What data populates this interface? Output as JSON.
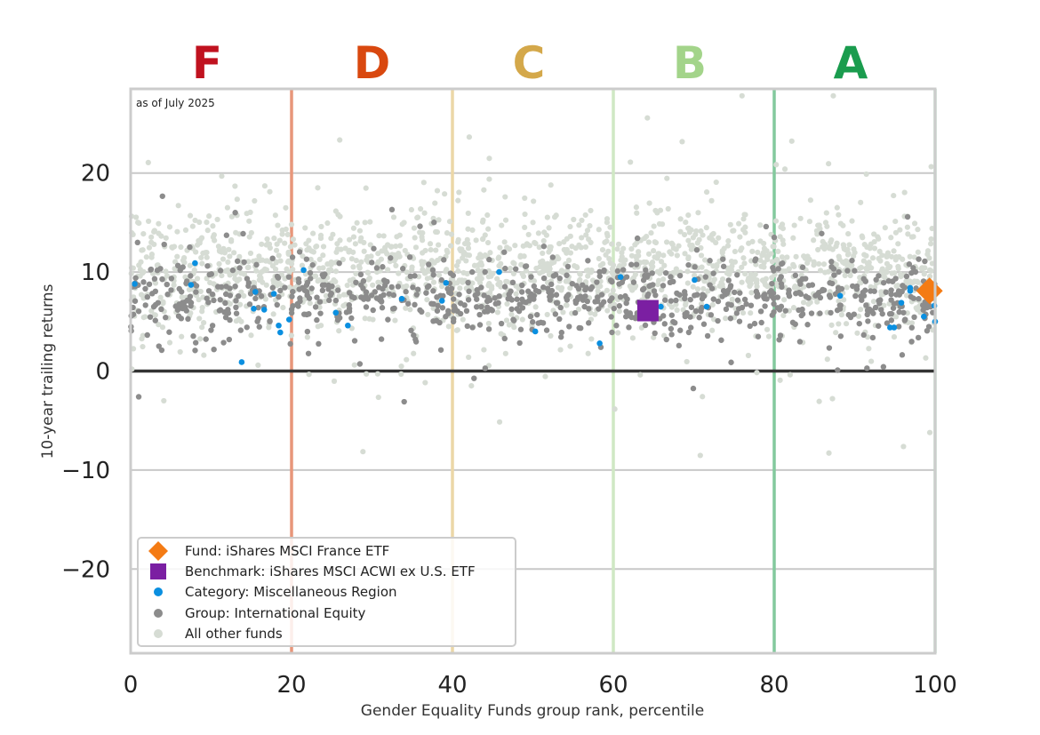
{
  "chart_data": {
    "type": "scatter",
    "annotation": "as of July 2025",
    "xlabel": "Gender Equality Funds group rank, percentile",
    "ylabel": "10-year trailing returns",
    "xlim": [
      0,
      100
    ],
    "ylim": [
      -28.5,
      28.5
    ],
    "x_ticks": [
      0,
      20,
      40,
      60,
      80,
      100
    ],
    "y_ticks": [
      20,
      10,
      0,
      -10,
      -20
    ],
    "y_tick_labels": [
      "20",
      "10",
      "0",
      "−10",
      "−20"
    ],
    "grid": "horizontal",
    "zero_line": 0,
    "grade_bands": [
      {
        "label": "F",
        "center": 9.5,
        "color": "#c0121f"
      },
      {
        "label": "D",
        "center": 30,
        "color": "#d9480f"
      },
      {
        "label": "C",
        "center": 49.5,
        "color": "#d4a84a"
      },
      {
        "label": "B",
        "center": 69.5,
        "color": "#a3d48a"
      },
      {
        "label": "A",
        "center": 89.5,
        "color": "#1a9c4e"
      }
    ],
    "band_boundaries": [
      {
        "x": 20,
        "color": "#e8967a"
      },
      {
        "x": 40,
        "color": "#ecd7a7"
      },
      {
        "x": 60,
        "color": "#cfe8c4"
      },
      {
        "x": 80,
        "color": "#83c99d"
      },
      {
        "x": 100,
        "color": "#b6dcc0"
      }
    ],
    "legend_placement": "lower-left",
    "series": [
      {
        "name": "Fund: iShares MSCI France ETF",
        "color": "#f47b14",
        "marker": "diamond",
        "points": [
          [
            99.3,
            8.1
          ]
        ]
      },
      {
        "name": "Benchmark: iShares MSCI ACWI ex U.S. ETF",
        "color": "#7b1fa2",
        "marker": "square",
        "points": [
          [
            64.3,
            6.1
          ]
        ]
      },
      {
        "name": "Category: Miscellaneous Region",
        "color": "#0a8fe0",
        "marker": "circle",
        "points": [
          [
            0.5,
            8.8
          ],
          [
            7.5,
            8.7
          ],
          [
            8,
            10.9
          ],
          [
            13.8,
            0.9
          ],
          [
            15.3,
            6.3
          ],
          [
            15.5,
            8
          ],
          [
            16.6,
            6.2
          ],
          [
            17.8,
            7.8
          ],
          [
            18.4,
            4.6
          ],
          [
            18.6,
            3.9
          ],
          [
            19.7,
            5.2
          ],
          [
            21.5,
            10.2
          ],
          [
            25.5,
            5.9
          ],
          [
            27,
            4.6
          ],
          [
            33.7,
            7.3
          ],
          [
            38.7,
            7.1
          ],
          [
            39.2,
            8.9
          ],
          [
            45.8,
            10
          ],
          [
            50.3,
            4
          ],
          [
            58.3,
            2.8
          ],
          [
            60.9,
            9.5
          ],
          [
            65.9,
            6.5
          ],
          [
            70.1,
            9.2
          ],
          [
            71.6,
            6.5
          ],
          [
            88.2,
            7.6
          ],
          [
            94.4,
            4.4
          ],
          [
            94.9,
            4.4
          ],
          [
            95.8,
            6.9
          ],
          [
            96.9,
            8.1
          ],
          [
            96.9,
            8.4
          ],
          [
            98.6,
            5.5
          ],
          [
            99.9,
            6.6
          ],
          [
            100,
            5
          ]
        ]
      },
      {
        "name": "Group: International Equity",
        "color": "#8c8c8c",
        "marker": "circle",
        "points": []
      },
      {
        "name": "All other funds",
        "color": "#d6dcd4",
        "marker": "circle",
        "points": []
      }
    ]
  }
}
